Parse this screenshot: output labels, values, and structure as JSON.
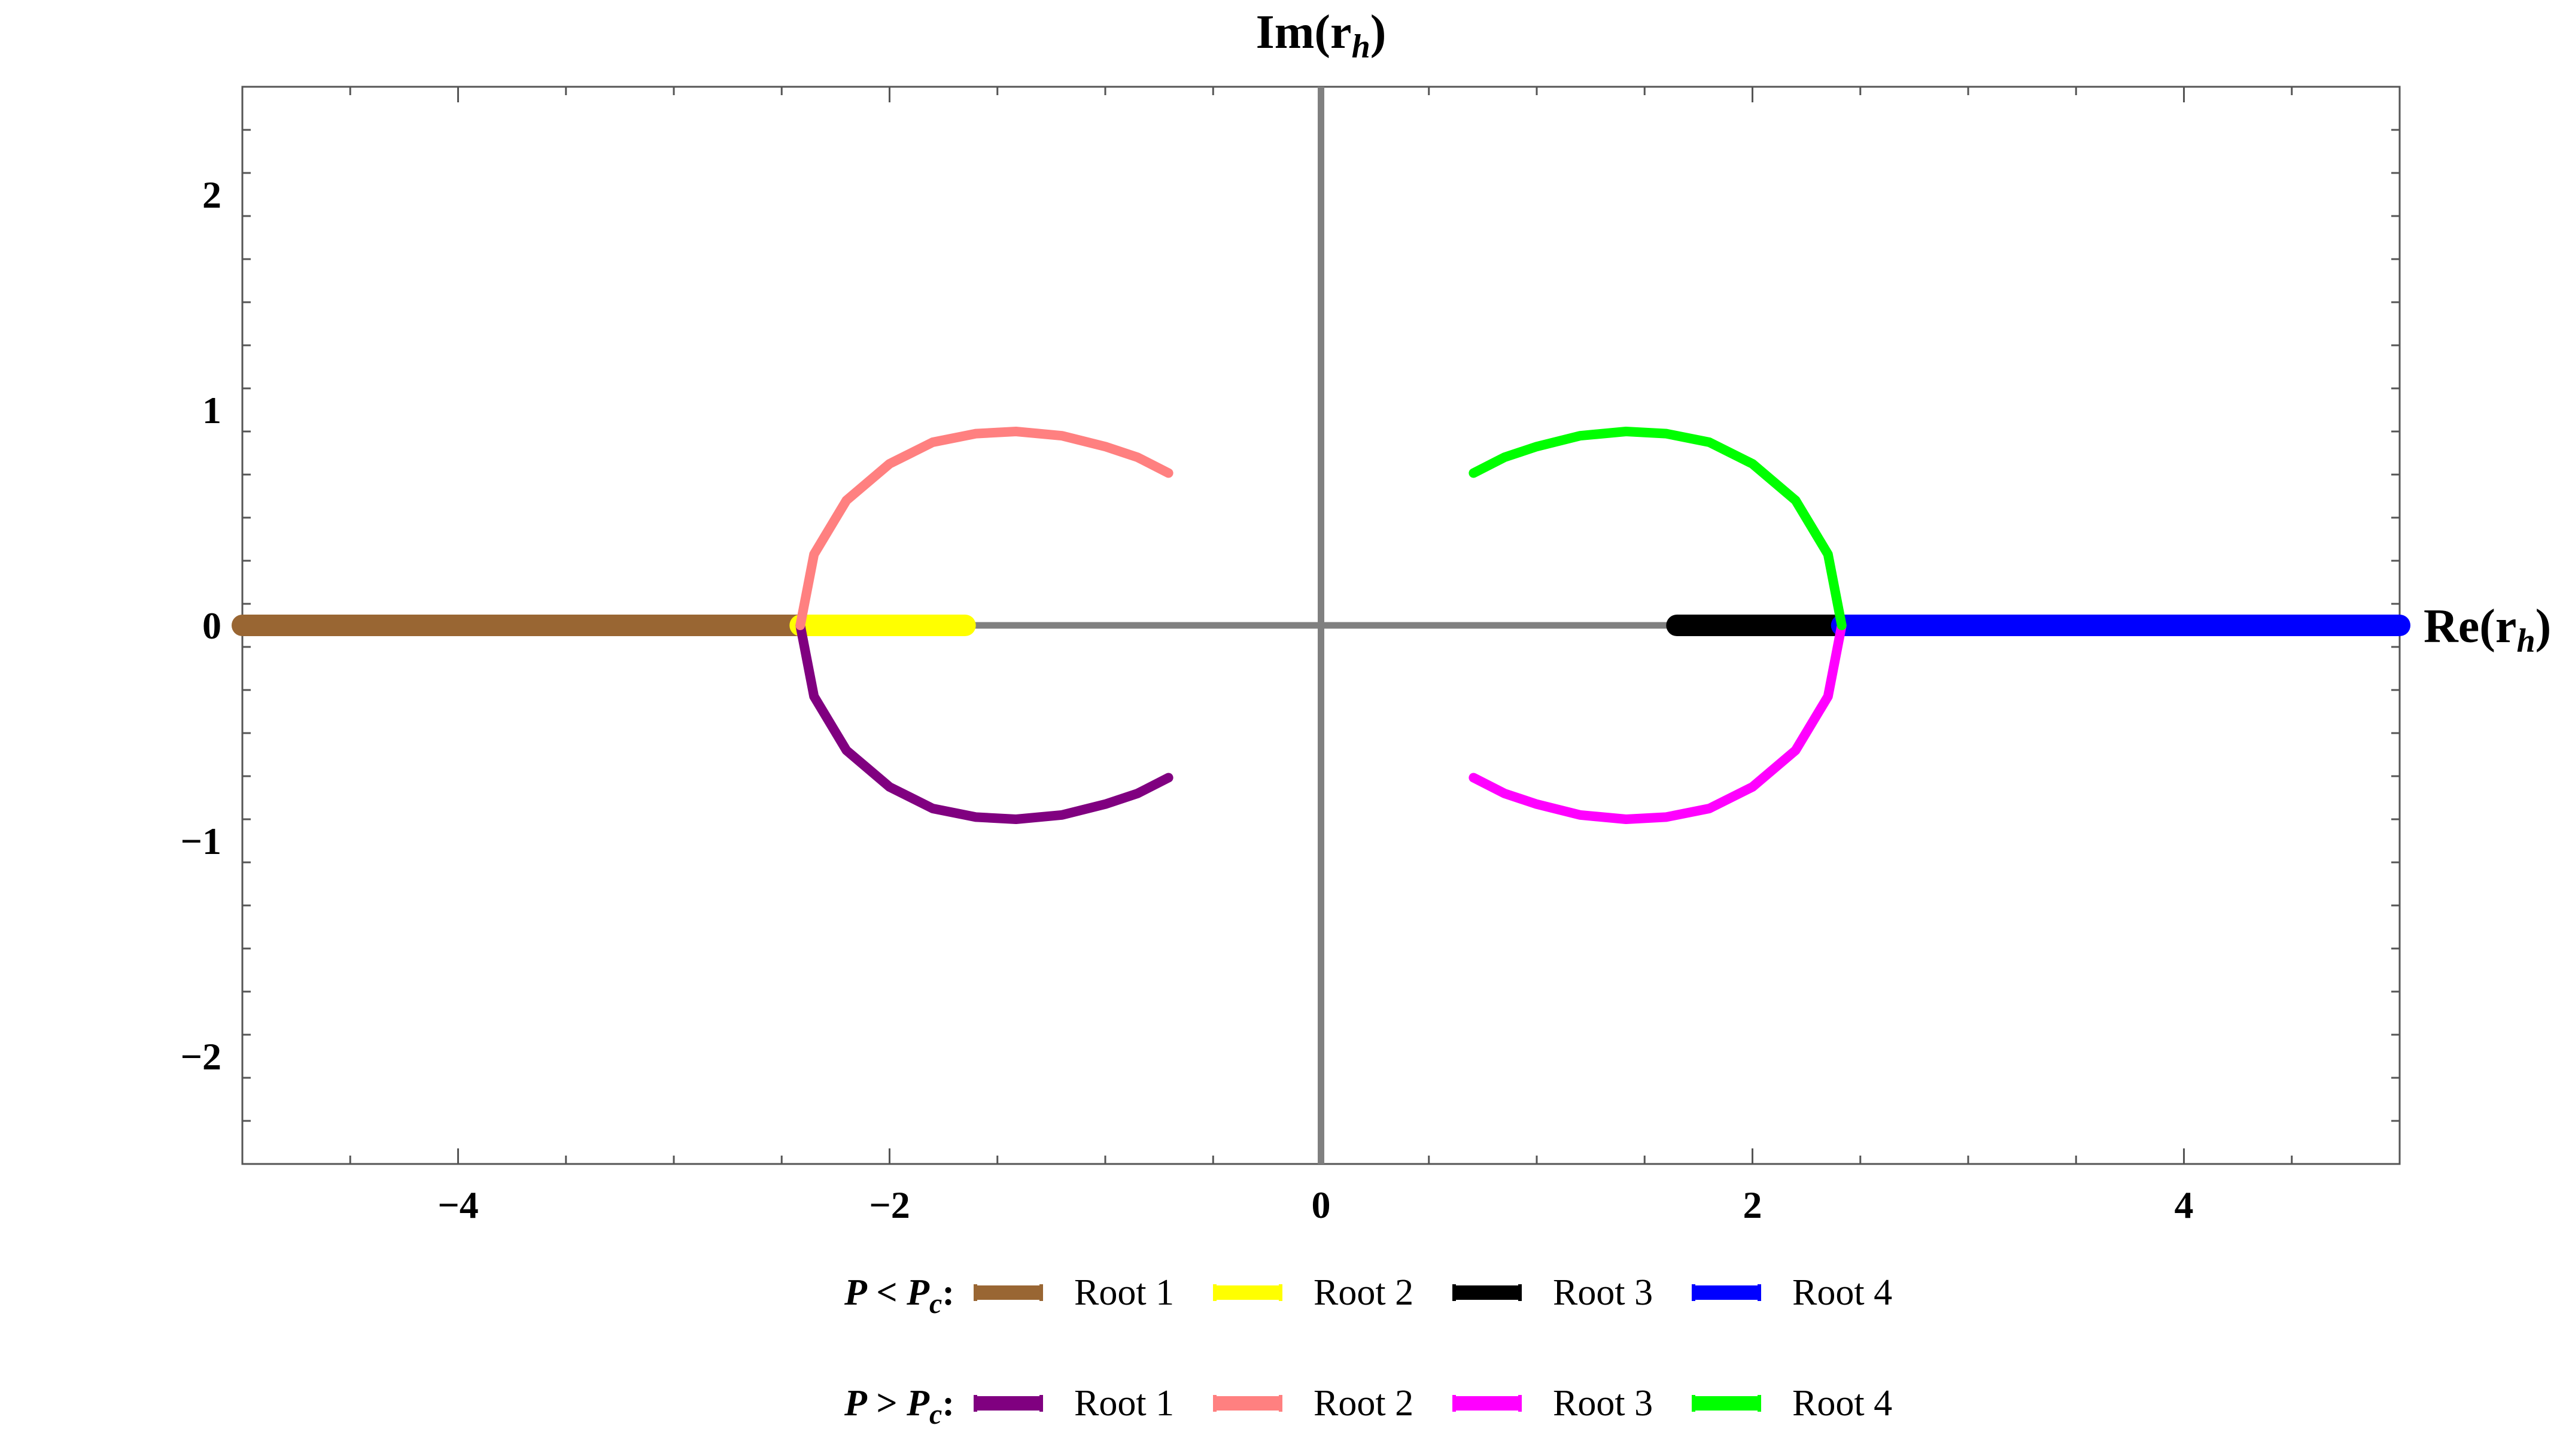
{
  "chart_data": {
    "type": "line",
    "title": "",
    "xlabel": "Re(r_h)",
    "ylabel": "Im(r_h)",
    "axis_titles": {
      "x": {
        "main": "Re(r",
        "sub": "h",
        "close": ")"
      },
      "y": {
        "main": "Im(r",
        "sub": "h",
        "close": ")"
      }
    },
    "xlim": [
      -5,
      5
    ],
    "ylim": [
      -2.5,
      2.5
    ],
    "x_ticks": [
      {
        "value": -4,
        "label": "−4"
      },
      {
        "value": -2,
        "label": "−2"
      },
      {
        "value": 0,
        "label": "0"
      },
      {
        "value": 2,
        "label": "2"
      },
      {
        "value": 4,
        "label": "4"
      }
    ],
    "y_ticks": [
      {
        "value": -2,
        "label": "−2"
      },
      {
        "value": -1,
        "label": "−1"
      },
      {
        "value": 0,
        "label": "0"
      },
      {
        "value": 1,
        "label": "1"
      },
      {
        "value": 2,
        "label": "2"
      }
    ],
    "grid": false,
    "legend_placement": "bottom",
    "series": [
      {
        "name": "Root 1",
        "group": "P_lt_Pc",
        "color": "#996633",
        "x": [
          -5,
          -2.414
        ],
        "y": [
          0,
          0
        ]
      },
      {
        "name": "Root 2",
        "group": "P_lt_Pc",
        "color": "#ffff00",
        "x": [
          -2.414,
          -1.65
        ],
        "y": [
          0,
          0
        ]
      },
      {
        "name": "Root 3",
        "group": "P_lt_Pc",
        "color": "#000000",
        "x": [
          1.65,
          2.414
        ],
        "y": [
          0,
          0
        ]
      },
      {
        "name": "Root 4",
        "group": "P_lt_Pc",
        "color": "#0000ff",
        "x": [
          2.414,
          5
        ],
        "y": [
          0,
          0
        ]
      },
      {
        "name": "Root 1",
        "group": "P_gt_Pc",
        "color": "#800080",
        "x": [
          -2.414,
          -2.35,
          -2.2,
          -2.0,
          -1.8,
          -1.6,
          -1.414,
          -1.2,
          -1.0,
          -0.85,
          -0.707
        ],
        "y": [
          0,
          -0.33,
          -0.58,
          -0.75,
          -0.85,
          -0.89,
          -0.9,
          -0.88,
          -0.83,
          -0.78,
          -0.707
        ]
      },
      {
        "name": "Root 2",
        "group": "P_gt_Pc",
        "color": "#ff8080",
        "x": [
          -2.414,
          -2.35,
          -2.2,
          -2.0,
          -1.8,
          -1.6,
          -1.414,
          -1.2,
          -1.0,
          -0.85,
          -0.707
        ],
        "y": [
          0,
          0.33,
          0.58,
          0.75,
          0.85,
          0.89,
          0.9,
          0.88,
          0.83,
          0.78,
          0.707
        ]
      },
      {
        "name": "Root 3",
        "group": "P_gt_Pc",
        "color": "#ff00ff",
        "x": [
          0.707,
          0.85,
          1.0,
          1.2,
          1.414,
          1.6,
          1.8,
          2.0,
          2.2,
          2.35,
          2.414
        ],
        "y": [
          -0.707,
          -0.78,
          -0.83,
          -0.88,
          -0.9,
          -0.89,
          -0.85,
          -0.75,
          -0.58,
          -0.33,
          0
        ]
      },
      {
        "name": "Root 4",
        "group": "P_gt_Pc",
        "color": "#00ff00",
        "x": [
          0.707,
          0.85,
          1.0,
          1.2,
          1.414,
          1.6,
          1.8,
          2.0,
          2.2,
          2.35,
          2.414
        ],
        "y": [
          0.707,
          0.78,
          0.83,
          0.88,
          0.9,
          0.89,
          0.85,
          0.75,
          0.58,
          0.33,
          0
        ]
      }
    ],
    "legend": {
      "rows": [
        {
          "condition": {
            "P": "P",
            "op": " < ",
            "Pc": "P",
            "sub": "c",
            "colon": ":"
          },
          "items": [
            {
              "label": "Root 1",
              "color": "#996633"
            },
            {
              "label": "Root 2",
              "color": "#ffff00"
            },
            {
              "label": "Root 3",
              "color": "#000000"
            },
            {
              "label": "Root 4",
              "color": "#0000ff"
            }
          ]
        },
        {
          "condition": {
            "P": "P",
            "op": " > ",
            "Pc": "P",
            "sub": "c",
            "colon": ":"
          },
          "items": [
            {
              "label": "Root 1",
              "color": "#800080"
            },
            {
              "label": "Root 2",
              "color": "#ff8080"
            },
            {
              "label": "Root 3",
              "color": "#ff00ff"
            },
            {
              "label": "Root 4",
              "color": "#00ff00"
            }
          ]
        }
      ]
    }
  }
}
